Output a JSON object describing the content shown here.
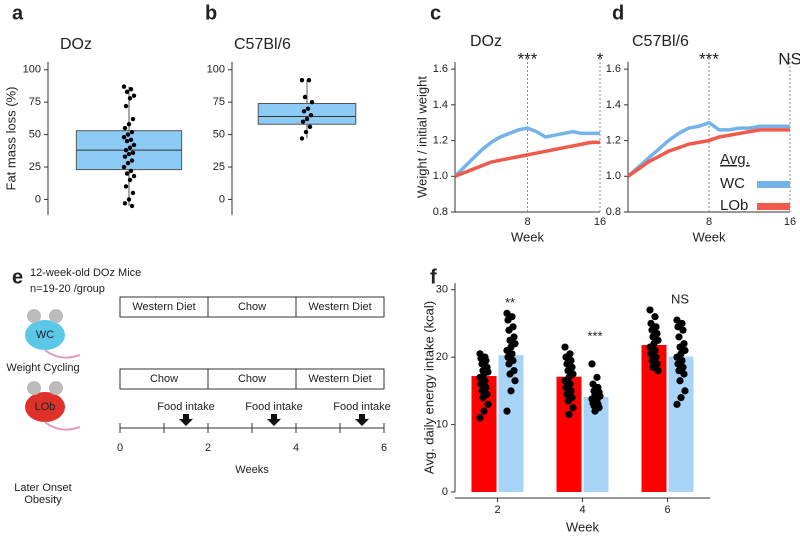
{
  "chart_data": [
    {
      "type": "box",
      "panel": "a",
      "title": "DOz",
      "ylabel": "Fat mass loss (%)",
      "ylim": [
        -12,
        106
      ],
      "yticks": [
        0,
        25,
        50,
        75,
        100
      ],
      "color": "#8ccbf6",
      "stats": {
        "whisker_low": -5,
        "q1": 23,
        "median": 38,
        "q3": 53,
        "whisker_high": 87
      },
      "points": [
        87,
        85,
        83,
        80,
        78,
        72,
        62,
        58,
        55,
        52,
        50,
        48,
        46,
        45,
        42,
        40,
        38,
        36,
        35,
        33,
        30,
        28,
        25,
        22,
        20,
        18,
        15,
        10,
        5,
        0,
        -3,
        -5
      ]
    },
    {
      "type": "box",
      "panel": "b",
      "title": "C57Bl/6",
      "ylim": [
        -12,
        106
      ],
      "yticks": [
        0,
        25,
        50,
        75,
        100
      ],
      "color": "#8ccbf6",
      "stats": {
        "whisker_low": 47,
        "q1": 58,
        "median": 64,
        "q3": 74,
        "whisker_high": 92
      },
      "points": [
        92,
        92,
        79,
        75,
        70,
        68,
        65,
        62,
        60,
        56,
        52,
        47
      ]
    },
    {
      "type": "line",
      "panel": "c",
      "title": "DOz",
      "ylabel": "Weight / initial weight",
      "xlabel": "Week",
      "xlim": [
        0,
        16
      ],
      "xticks": [
        8,
        16
      ],
      "ylim": [
        0.8,
        1.64
      ],
      "yticks": [
        0.8,
        {
          "value": 1,
          "label": "1.0"
        },
        1.2,
        1.4,
        1.6
      ],
      "annotations": [
        "***",
        "*"
      ],
      "x": [
        0,
        1,
        2,
        3,
        4,
        5,
        6,
        7,
        8,
        9,
        10,
        11,
        12,
        13,
        14,
        15,
        16
      ],
      "series": [
        {
          "color": "#74b3e8",
          "values": [
            1.0,
            1.05,
            1.1,
            1.15,
            1.19,
            1.22,
            1.24,
            1.26,
            1.27,
            1.25,
            1.22,
            1.23,
            1.24,
            1.25,
            1.24,
            1.24,
            1.24
          ]
        },
        {
          "color": "#f05a4a",
          "values": [
            1.0,
            1.02,
            1.04,
            1.06,
            1.08,
            1.09,
            1.1,
            1.11,
            1.12,
            1.13,
            1.14,
            1.15,
            1.16,
            1.17,
            1.18,
            1.19,
            1.19
          ]
        }
      ]
    },
    {
      "type": "line",
      "panel": "d",
      "title": "C57Bl/6",
      "xlabel": "Week",
      "xlim": [
        0,
        16
      ],
      "xticks": [
        8,
        16
      ],
      "ylim": [
        0.8,
        1.64
      ],
      "yticks": [
        0.8,
        {
          "value": 1,
          "label": "1.0"
        },
        1.2,
        1.4,
        1.6
      ],
      "annotations": [
        "***",
        "NS"
      ],
      "legend": "bottom-right",
      "legend_title": "Avg.",
      "x": [
        0,
        1,
        2,
        3,
        4,
        5,
        6,
        7,
        8,
        9,
        10,
        11,
        12,
        13,
        14,
        15,
        16
      ],
      "series": [
        {
          "name": "WC",
          "color": "#74b3e8",
          "values": [
            1.0,
            1.05,
            1.1,
            1.15,
            1.2,
            1.24,
            1.27,
            1.28,
            1.3,
            1.26,
            1.26,
            1.27,
            1.27,
            1.28,
            1.28,
            1.28,
            1.28
          ]
        },
        {
          "name": "LOb",
          "color": "#f05a4a",
          "values": [
            1.0,
            1.04,
            1.08,
            1.11,
            1.14,
            1.16,
            1.18,
            1.19,
            1.2,
            1.22,
            1.23,
            1.24,
            1.25,
            1.26,
            1.26,
            1.26,
            1.26
          ]
        }
      ]
    },
    {
      "type": "bar",
      "panel": "f",
      "ylabel": "Avg. daily energy intake (kcal)",
      "xlabel": "Week",
      "categories": [
        "2",
        "4",
        "6"
      ],
      "ylim": [
        0,
        31
      ],
      "yticks": [
        0,
        10,
        20,
        30
      ],
      "annotations": [
        "**",
        "***",
        "NS"
      ],
      "series": [
        {
          "color": "#ff0000",
          "values": [
            17.2,
            17.1,
            21.8
          ],
          "errors": [
            0.6,
            0.6,
            0.5
          ],
          "points": [
            [
              20.5,
              20,
              19.8,
              19.5,
              19,
              18.5,
              18,
              17.8,
              17.5,
              17,
              16.5,
              16,
              15.5,
              15,
              14.5,
              14,
              13,
              12,
              11
            ],
            [
              21.5,
              20.5,
              20,
              19.5,
              19,
              18.5,
              18,
              17.5,
              17,
              16.5,
              16,
              15.5,
              15,
              14.5,
              14,
              13.5,
              12.5,
              11.5
            ],
            [
              27,
              26,
              25,
              24.5,
              24,
              23.5,
              23,
              22.5,
              22,
              21.5,
              21,
              20.5,
              20,
              19.5,
              19,
              18.5,
              18
            ]
          ]
        },
        {
          "color": "#a8d4f8",
          "values": [
            20.3,
            14.1,
            20.1
          ],
          "errors": [
            0.7,
            0.4,
            0.6
          ],
          "points": [
            [
              26.5,
              26,
              25.5,
              24.5,
              24,
              23,
              22.5,
              22,
              21.5,
              21,
              20.5,
              20,
              19.5,
              19,
              18,
              17.5,
              16.5,
              15,
              12
            ],
            [
              19,
              17,
              16,
              15.5,
              15,
              14.8,
              14.5,
              14.2,
              14,
              13.8,
              13.5,
              13.2,
              13,
              12.8,
              12.5,
              12
            ],
            [
              25.5,
              25,
              24.5,
              24,
              23,
              22,
              21.5,
              21,
              20.5,
              20,
              19.5,
              19,
              18.5,
              18,
              17.5,
              16.5,
              15,
              14,
              13
            ]
          ]
        }
      ]
    }
  ],
  "diagram": {
    "panel": "e",
    "cohort": "12-week-old DOz Mice",
    "n": "n=19-20 /group",
    "groups": [
      {
        "abbr": "WC",
        "name": "Weight Cycling",
        "diets": [
          "Western Diet",
          "Chow",
          "Western Diet"
        ]
      },
      {
        "abbr": "LOb",
        "name": "Later Onset Obesity",
        "diets": [
          "Chow",
          "Chow",
          "Western Diet"
        ]
      }
    ],
    "food_intake": [
      "Food intake",
      "Food intake",
      "Food intake"
    ],
    "axis_ticks": [
      0,
      2,
      4,
      6
    ],
    "axis_label": "Weeks"
  }
}
